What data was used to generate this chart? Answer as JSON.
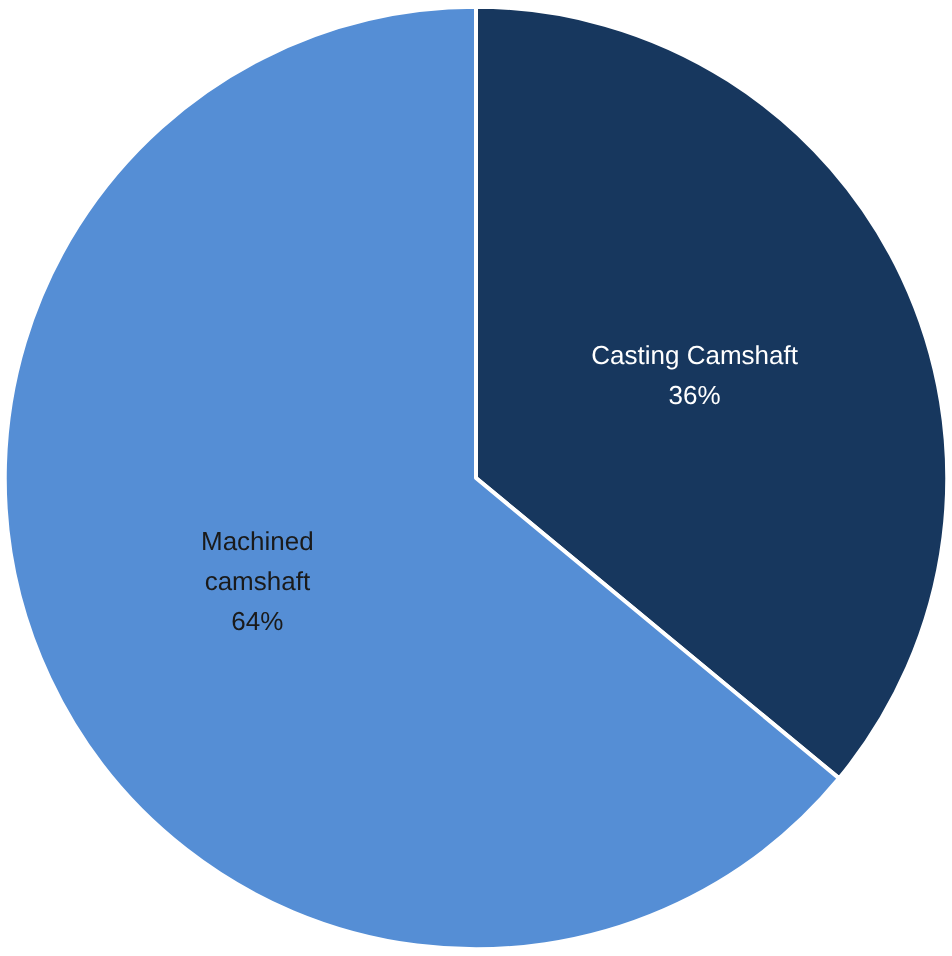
{
  "chart_data": {
    "type": "pie",
    "categories": [
      "Casting Camshaft",
      "Machined camshaft"
    ],
    "values": [
      36,
      64
    ],
    "colors": [
      "#17375e",
      "#558ed5"
    ],
    "value_labels": [
      "36%",
      "64%"
    ]
  }
}
